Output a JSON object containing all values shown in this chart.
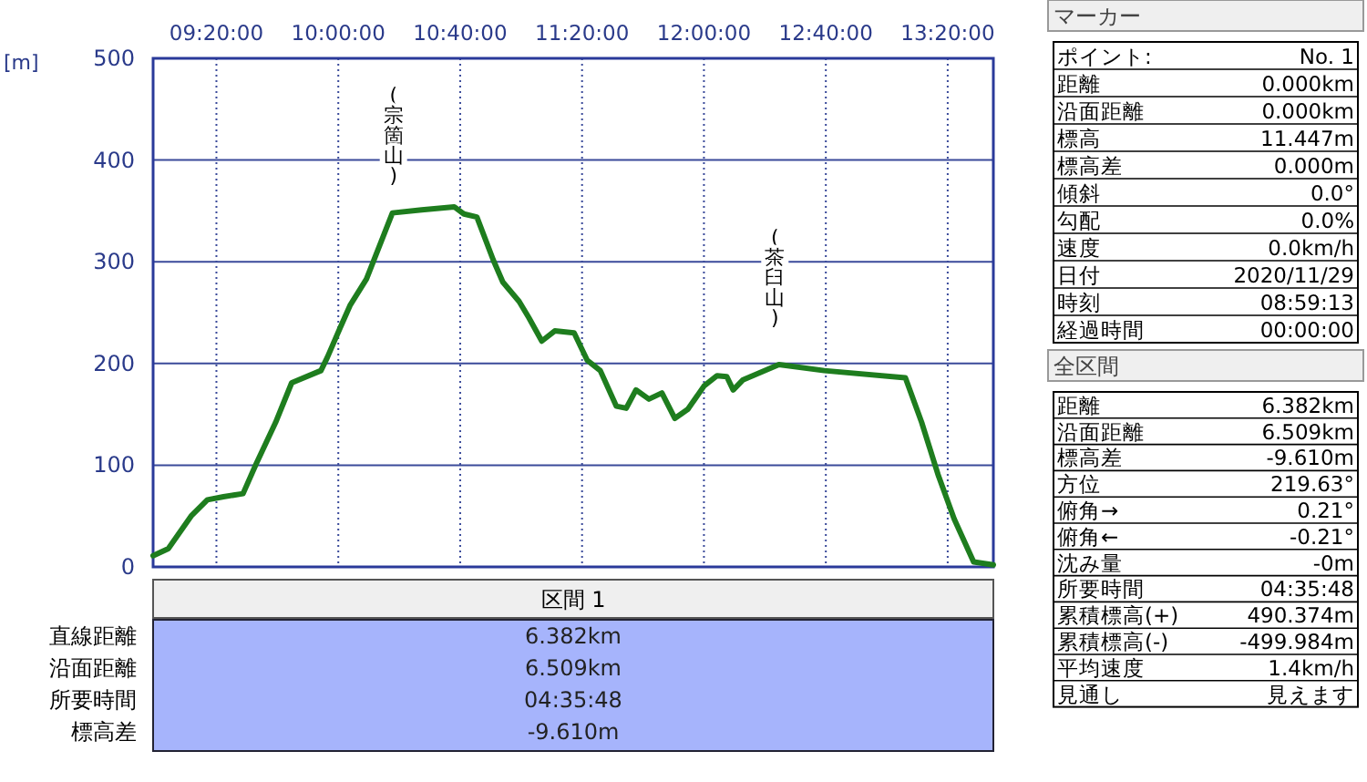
{
  "chart_data": [
    {
      "type": "line",
      "ylabel": "[m]",
      "xlim": [
        8.987,
        13.583
      ],
      "ylim": [
        0,
        500
      ],
      "yticks": [
        0,
        100,
        200,
        300,
        400,
        500
      ],
      "xticks": [
        {
          "value": 9.3333,
          "label": "09:20:00"
        },
        {
          "value": 10,
          "label": "10:00:00"
        },
        {
          "value": 10.6667,
          "label": "10:40:00"
        },
        {
          "value": 11.3333,
          "label": "11:20:00"
        },
        {
          "value": 12,
          "label": "12:00:00"
        },
        {
          "value": 12.6667,
          "label": "12:40:00"
        },
        {
          "value": 13.3333,
          "label": "13:20:00"
        }
      ],
      "grid": true,
      "marker": "none",
      "line_style": "solid",
      "series": [
        {
          "color": "#1e7d1e",
          "x": [
            8.987,
            9.07,
            9.195,
            9.284,
            9.372,
            9.479,
            9.55,
            9.657,
            9.745,
            9.905,
            9.94,
            10.01,
            10.064,
            10.154,
            10.296,
            10.456,
            10.634,
            10.687,
            10.758,
            10.847,
            10.9,
            10.989,
            11.042,
            11.113,
            11.184,
            11.29,
            11.362,
            11.433,
            11.521,
            11.575,
            11.628,
            11.699,
            11.77,
            11.841,
            11.912,
            12.001,
            12.072,
            12.125,
            12.16,
            12.214,
            12.41,
            12.658,
            13.102,
            13.191,
            13.28,
            13.369,
            13.475,
            13.583
          ],
          "values": [
            11,
            18,
            50,
            66,
            69,
            72,
            101,
            142,
            181,
            193,
            206,
            235,
            257,
            283,
            348,
            351,
            354,
            347,
            344,
            302,
            280,
            261,
            245,
            222,
            232,
            230,
            203,
            193,
            158,
            156,
            174,
            165,
            171,
            146,
            155,
            178,
            188,
            187,
            174,
            184,
            199,
            193,
            186,
            142,
            91,
            47,
            5,
            2
          ]
        }
      ],
      "annotations": [
        "(宗箇山)",
        "(茶臼山)"
      ]
    },
    {
      "type": "other",
      "title": "区間 1",
      "annotations": [
        "直線距離",
        "6.382km",
        "沿面距離",
        "6.509km",
        "所要時間",
        "04:35:48",
        "標高差",
        "-9.610m"
      ]
    },
    {
      "type": "other",
      "title": "マーカー",
      "annotations": [
        "ポイント:",
        "No. 1",
        "距離",
        "0.000km",
        "沿面距離",
        "0.000km",
        "標高",
        "11.447m",
        "標高差",
        "0.000m",
        "傾斜",
        "0.0°",
        "勾配",
        "0.0%",
        "速度",
        "0.0km/h",
        "日付",
        "2020/11/29",
        "時刻",
        "08:59:13",
        "経過時間",
        "00:00:00"
      ]
    },
    {
      "type": "other",
      "title": "全区間",
      "annotations": [
        "距離",
        "6.382km",
        "沿面距離",
        "6.509km",
        "標高差",
        "-9.610m",
        "方位",
        "219.63°",
        "俯角→",
        "0.21°",
        "俯角←",
        "-0.21°",
        "沈み量",
        "-0m",
        "所要時間",
        "04:35:48",
        "累積標高(+)",
        "490.374m",
        "累積標高(-)",
        "-499.984m",
        "平均速度",
        "1.4km/h",
        "見通し",
        "見えます"
      ]
    }
  ]
}
